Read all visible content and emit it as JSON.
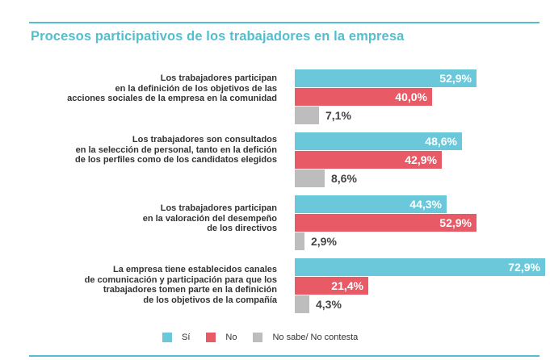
{
  "colors": {
    "accent": "#52bfcf",
    "si": "#6ac8da",
    "no": "#e85a66",
    "ns": "#bdbdbd"
  },
  "chart_data": {
    "type": "bar",
    "orientation": "horizontal",
    "title": "Procesos participativos de los trabajadores en la empresa",
    "categories": [
      [
        "Los trabajadores participan",
        "en la definición de los objetivos de las",
        "acciones sociales de la empresa en la comunidad"
      ],
      [
        "Los trabajadores son consultados",
        "en la selección de personal, tanto en la defición",
        "de los perfiles como de los candidatos elegidos"
      ],
      [
        "Los trabajadores participan",
        "en la valoración del desempeño",
        "de los directivos"
      ],
      [
        "La empresa tiene establecidos canales",
        "de comunicación y participación para que los",
        "trabajadores tomen parte en la definición",
        "de los objetivos de la  compañía"
      ]
    ],
    "series": [
      {
        "name": "Sí",
        "values": [
          52.9,
          48.6,
          44.3,
          72.9
        ],
        "labels": [
          "52,9%",
          "48,6%",
          "44,3%",
          "72,9%"
        ]
      },
      {
        "name": "No",
        "values": [
          40.0,
          42.9,
          52.9,
          21.4
        ],
        "labels": [
          "40,0%",
          "42,9%",
          "52,9%",
          "21,4%"
        ]
      },
      {
        "name": "No sabe/ No contesta",
        "values": [
          7.1,
          8.6,
          2.9,
          4.3
        ],
        "labels": [
          "7,1%",
          "8,6%",
          "2,9%",
          "4,3%"
        ]
      }
    ],
    "legend_position": "bottom",
    "grid": false
  }
}
